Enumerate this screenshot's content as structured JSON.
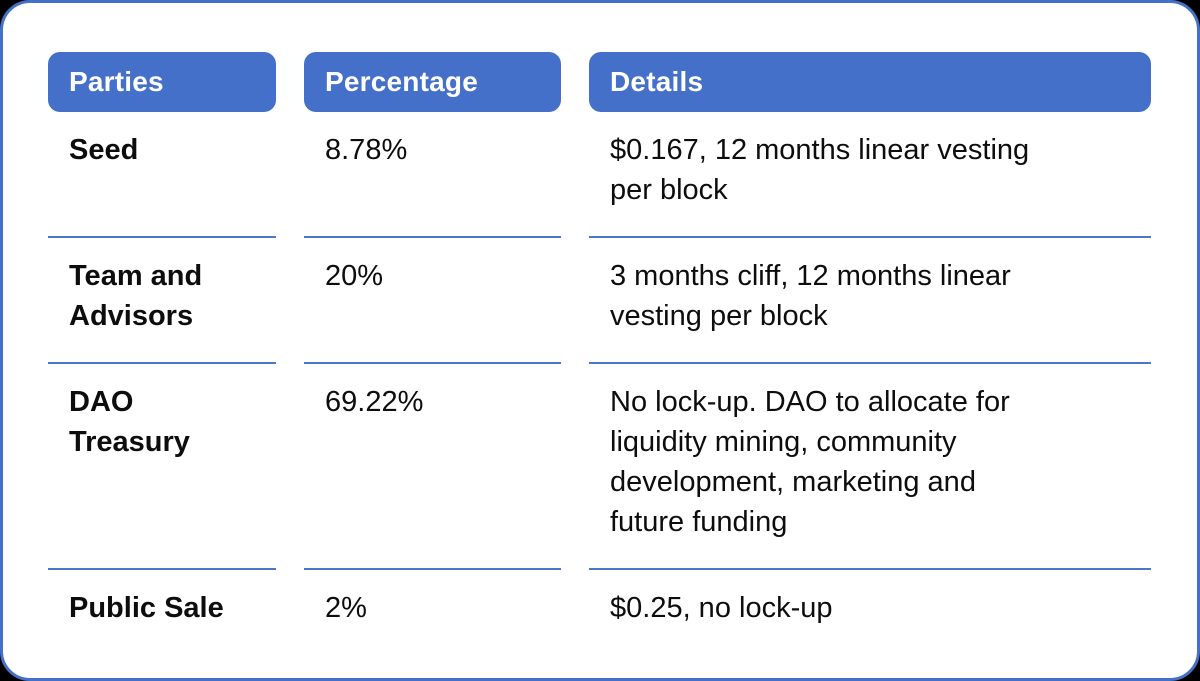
{
  "table": {
    "headers": [
      "Parties",
      "Percentage",
      "Details"
    ],
    "rows": [
      {
        "party": "Seed",
        "percentage": "8.78%",
        "details": "$0.167, 12 months linear vesting\nper block"
      },
      {
        "party": "Team and\nAdvisors",
        "percentage": "20%",
        "details": "3 months cliff, 12 months linear\nvesting per block"
      },
      {
        "party": "DAO\nTreasury",
        "percentage": "69.22%",
        "details": "No lock-up. DAO to allocate for\nliquidity mining, community\ndevelopment, marketing and\nfuture funding"
      },
      {
        "party": "Public Sale",
        "percentage": "2%",
        "details": "$0.25, no lock-up"
      }
    ]
  },
  "colors": {
    "header_bg": "#4470c9",
    "header_text": "#ffffff",
    "separator": "#4d76ca",
    "card_border": "#4470c9",
    "card_bg": "#ffffff",
    "page_bg": "#000000",
    "body_text": "#0d0d0d"
  }
}
